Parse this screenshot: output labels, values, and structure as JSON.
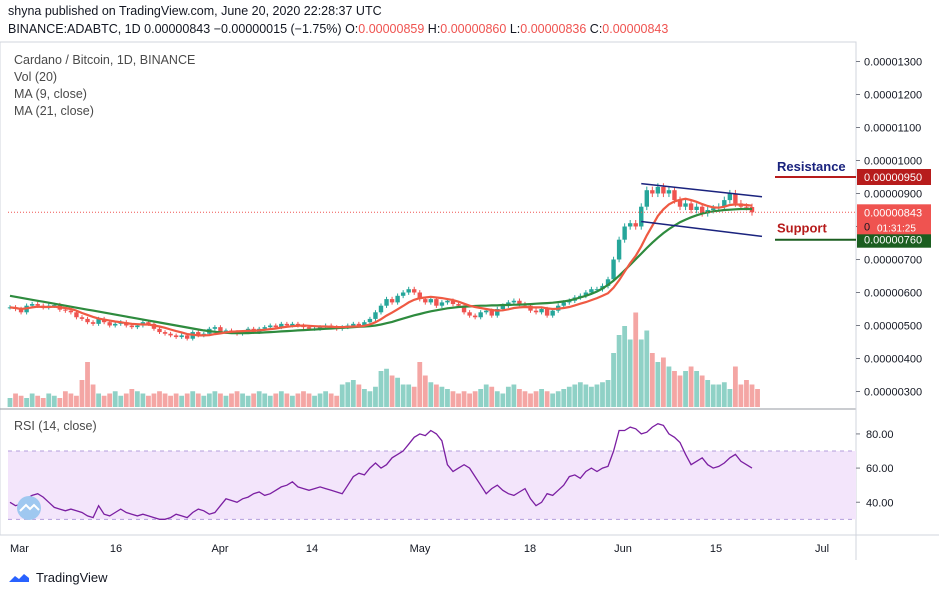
{
  "header": {
    "published": "shyna published on TradingView.com, June 20, 2020 22:28:37 UTC",
    "symbol": "BINANCE:ADABTC, 1D",
    "last": "0.00000843",
    "change": "−0.00000015 (−1.75%)",
    "o_label": "O:",
    "o": "0.00000859",
    "h_label": "H:",
    "h": "0.00000860",
    "l_label": "L:",
    "l": "0.00000836",
    "c_label": "C:",
    "c": "0.00000843"
  },
  "indicators": {
    "title": "Cardano / Bitcoin, 1D, BINANCE",
    "vol": "Vol (20)",
    "ma9": "MA (9, close)",
    "ma21": "MA (21, close)",
    "rsi": "RSI (14, close)"
  },
  "annotations": {
    "resistance": "Resistance",
    "support": "Support",
    "resistance_tag": "0.00000950",
    "support_tag": "0.00000760",
    "price_tag": "0.00000843",
    "countdown": "01:31:25",
    "partial_label": "0"
  },
  "footer": {
    "brand": "TradingView"
  },
  "colors": {
    "up": "#26a69a",
    "down": "#ef5350",
    "vol_up": "#8fd1c6",
    "vol_down": "#f4a6a4",
    "ma9": "#ef5a43",
    "ma21": "#2e8b3e",
    "rsi": "#7b1fa2",
    "rsi_band": "#f3e5fb",
    "channel": "#1a237e",
    "resistance": "#b71c1c",
    "support": "#1b5e20"
  },
  "chart_data": {
    "type": "candlestick",
    "title": "Cardano / Bitcoin, 1D, BINANCE",
    "price_axis": {
      "ticks": [
        "0.00000300",
        "0.00000400",
        "0.00000500",
        "0.00000600",
        "0.00000700",
        "0.00000800",
        "0.00000900",
        "0.00001000",
        "0.00001100",
        "0.00001200",
        "0.00001300"
      ],
      "range": [
        2.5e-06,
        1.35e-05
      ]
    },
    "time_axis": [
      "Mar",
      "16",
      "Apr",
      "14",
      "May",
      "18",
      "Jun",
      "15",
      "Jul"
    ],
    "rsi_axis": {
      "ticks": [
        "40.00",
        "60.00",
        "80.00"
      ],
      "band": [
        30,
        70
      ]
    },
    "resistance": 9.5e-06,
    "support": 7.6e-06,
    "close": [
      5.55e-06,
      5.5e-06,
      5.4e-06,
      5.6e-06,
      5.65e-06,
      5.6e-06,
      5.55e-06,
      5.6e-06,
      5.62e-06,
      5.48e-06,
      5.45e-06,
      5.4e-06,
      5.25e-06,
      5.2e-06,
      5.1e-06,
      5.05e-06,
      5.2e-06,
      5.1e-06,
      5e-06,
      5.05e-06,
      5.1e-06,
      5e-06,
      4.95e-06,
      5e-06,
      5.1e-06,
      5.05e-06,
      4.9e-06,
      4.8e-06,
      4.75e-06,
      4.7e-06,
      4.65e-06,
      4.7e-06,
      4.6e-06,
      4.8e-06,
      4.7e-06,
      4.75e-06,
      4.9e-06,
      4.95e-06,
      4.8e-06,
      4.85e-06,
      4.8e-06,
      4.75e-06,
      4.8e-06,
      4.9e-06,
      4.8e-06,
      4.9e-06,
      4.95e-06,
      5e-06,
      4.95e-06,
      5.05e-06,
      5e-06,
      5.05e-06,
      5e-06,
      4.95e-06,
      4.9e-06,
      4.9e-06,
      4.95e-06,
      5e-06,
      4.95e-06,
      4.9e-06,
      4.95e-06,
      5e-06,
      5.05e-06,
      5e-06,
      5.1e-06,
      5.2e-06,
      5.4e-06,
      5.6e-06,
      5.8e-06,
      5.7e-06,
      5.9e-06,
      6e-06,
      6.1e-06,
      6e-06,
      5.8e-06,
      5.7e-06,
      5.8e-06,
      5.6e-06,
      5.7e-06,
      5.75e-06,
      5.65e-06,
      5.6e-06,
      5.4e-06,
      5.3e-06,
      5.25e-06,
      5.4e-06,
      5.45e-06,
      5.3e-06,
      5.5e-06,
      5.6e-06,
      5.7e-06,
      5.75e-06,
      5.65e-06,
      5.6e-06,
      5.45e-06,
      5.4e-06,
      5.5e-06,
      5.3e-06,
      5.45e-06,
      5.6e-06,
      5.7e-06,
      5.75e-06,
      5.85e-06,
      5.9e-06,
      6e-06,
      6.1e-06,
      6.1e-06,
      6.2e-06,
      6.4e-06,
      7e-06,
      7.6e-06,
      8e-06,
      8.1e-06,
      8e-06,
      8.6e-06,
      9.1e-06,
      9e-06,
      9.2e-06,
      9e-06,
      9.1e-06,
      8.8e-06,
      8.6e-06,
      8.7e-06,
      8.5e-06,
      8.6e-06,
      8.4e-06,
      8.5e-06,
      8.55e-06,
      8.6e-06,
      8.8e-06,
      9e-06,
      8.7e-06,
      8.6e-06,
      8.59e-06,
      8.43e-06
    ],
    "ma9_close": [
      5.55e-06,
      5.53e-06,
      5.5e-06,
      5.52e-06,
      5.55e-06,
      5.57e-06,
      5.56e-06,
      5.56e-06,
      5.57e-06,
      5.55e-06,
      5.53e-06,
      5.5e-06,
      5.45e-06,
      5.38e-06,
      5.32e-06,
      5.26e-06,
      5.21e-06,
      5.18e-06,
      5.15e-06,
      5.12e-06,
      5.1e-06,
      5.07e-06,
      5.05e-06,
      5.04e-06,
      5.03e-06,
      5.03e-06,
      5e-06,
      4.97e-06,
      4.93e-06,
      4.88e-06,
      4.83e-06,
      4.79e-06,
      4.74e-06,
      4.72e-06,
      4.7e-06,
      4.7e-06,
      4.71e-06,
      4.74e-06,
      4.76e-06,
      4.79e-06,
      4.81e-06,
      4.82e-06,
      4.83e-06,
      4.84e-06,
      4.84e-06,
      4.85e-06,
      4.87e-06,
      4.89e-06,
      4.91e-06,
      4.94e-06,
      4.96e-06,
      4.98e-06,
      4.99e-06,
      5e-06,
      4.99e-06,
      4.98e-06,
      4.97e-06,
      4.97e-06,
      4.96e-06,
      4.95e-06,
      4.95e-06,
      4.96e-06,
      4.97e-06,
      4.97e-06,
      4.99e-06,
      5.03e-06,
      5.1e-06,
      5.19e-06,
      5.3e-06,
      5.39e-06,
      5.49e-06,
      5.59e-06,
      5.7e-06,
      5.78e-06,
      5.83e-06,
      5.85e-06,
      5.87e-06,
      5.85e-06,
      5.83e-06,
      5.8e-06,
      5.77e-06,
      5.72e-06,
      5.66e-06,
      5.6e-06,
      5.56e-06,
      5.53e-06,
      5.5e-06,
      5.47e-06,
      5.45e-06,
      5.46e-06,
      5.49e-06,
      5.53e-06,
      5.55e-06,
      5.56e-06,
      5.55e-06,
      5.55e-06,
      5.55e-06,
      5.52e-06,
      5.5e-06,
      5.51e-06,
      5.53e-06,
      5.56e-06,
      5.61e-06,
      5.66e-06,
      5.71e-06,
      5.77e-06,
      5.83e-06,
      5.9e-06,
      5.98e-06,
      6.15e-06,
      6.37e-06,
      6.63e-06,
      6.89e-06,
      7.11e-06,
      7.4e-06,
      7.73e-06,
      8.02e-06,
      8.32e-06,
      8.52e-06,
      8.67e-06,
      8.76e-06,
      8.81e-06,
      8.84e-06,
      8.8e-06,
      8.75e-06,
      8.68e-06,
      8.62e-06,
      8.58e-06,
      8.57e-06,
      8.6e-06,
      8.65e-06,
      8.67e-06,
      8.66e-06,
      8.65e-06,
      8.63e-06
    ],
    "ma21_close": [
      5.9e-06,
      5.87e-06,
      5.84e-06,
      5.81e-06,
      5.78e-06,
      5.75e-06,
      5.72e-06,
      5.69e-06,
      5.66e-06,
      5.63e-06,
      5.6e-06,
      5.57e-06,
      5.54e-06,
      5.51e-06,
      5.48e-06,
      5.45e-06,
      5.42e-06,
      5.39e-06,
      5.36e-06,
      5.33e-06,
      5.3e-06,
      5.27e-06,
      5.24e-06,
      5.21e-06,
      5.18e-06,
      5.15e-06,
      5.12e-06,
      5.09e-06,
      5.06e-06,
      5.03e-06,
      5e-06,
      4.97e-06,
      4.94e-06,
      4.91e-06,
      4.88e-06,
      4.85e-06,
      4.83e-06,
      4.81e-06,
      4.79e-06,
      4.78e-06,
      4.77e-06,
      4.77e-06,
      4.77e-06,
      4.77e-06,
      4.78e-06,
      4.78e-06,
      4.79e-06,
      4.8e-06,
      4.81e-06,
      4.82e-06,
      4.83e-06,
      4.84e-06,
      4.85e-06,
      4.86e-06,
      4.87e-06,
      4.88e-06,
      4.89e-06,
      4.9e-06,
      4.91e-06,
      4.92e-06,
      4.93e-06,
      4.94e-06,
      4.95e-06,
      4.96e-06,
      4.97e-06,
      4.98e-06,
      5e-06,
      5.03e-06,
      5.07e-06,
      5.11e-06,
      5.16e-06,
      5.21e-06,
      5.26e-06,
      5.31e-06,
      5.35e-06,
      5.39e-06,
      5.43e-06,
      5.46e-06,
      5.49e-06,
      5.52e-06,
      5.54e-06,
      5.56e-06,
      5.57e-06,
      5.58e-06,
      5.59e-06,
      5.6e-06,
      5.6e-06,
      5.61e-06,
      5.61e-06,
      5.62e-06,
      5.62e-06,
      5.63e-06,
      5.63e-06,
      5.64e-06,
      5.65e-06,
      5.66e-06,
      5.67e-06,
      5.68e-06,
      5.69e-06,
      5.71e-06,
      5.73e-06,
      5.76e-06,
      5.8e-06,
      5.85e-06,
      5.9e-06,
      5.96e-06,
      6.03e-06,
      6.12e-06,
      6.23e-06,
      6.36e-06,
      6.51e-06,
      6.67e-06,
      6.84e-06,
      7.01e-06,
      7.18e-06,
      7.35e-06,
      7.51e-06,
      7.66e-06,
      7.8e-06,
      7.92e-06,
      8.03e-06,
      8.13e-06,
      8.21e-06,
      8.28e-06,
      8.34e-06,
      8.39e-06,
      8.43e-06,
      8.46e-06,
      8.48e-06,
      8.5e-06,
      8.51e-06,
      8.52e-06,
      8.53e-06,
      8.53e-06,
      8.53e-06
    ],
    "volume_relative": [
      0.2,
      0.3,
      0.25,
      0.2,
      0.3,
      0.25,
      0.2,
      0.3,
      0.25,
      0.2,
      0.35,
      0.3,
      0.25,
      0.6,
      1.0,
      0.5,
      0.3,
      0.25,
      0.3,
      0.35,
      0.25,
      0.3,
      0.4,
      0.35,
      0.3,
      0.25,
      0.3,
      0.35,
      0.3,
      0.25,
      0.3,
      0.25,
      0.3,
      0.35,
      0.3,
      0.25,
      0.3,
      0.35,
      0.3,
      0.25,
      0.3,
      0.35,
      0.3,
      0.25,
      0.3,
      0.35,
      0.3,
      0.25,
      0.3,
      0.35,
      0.3,
      0.25,
      0.3,
      0.35,
      0.3,
      0.25,
      0.3,
      0.35,
      0.3,
      0.25,
      0.5,
      0.55,
      0.6,
      0.5,
      0.4,
      0.35,
      0.45,
      0.8,
      0.85,
      0.7,
      0.65,
      0.5,
      0.5,
      0.45,
      1.0,
      0.7,
      0.55,
      0.5,
      0.45,
      0.4,
      0.35,
      0.3,
      0.35,
      0.3,
      0.35,
      0.4,
      0.5,
      0.45,
      0.35,
      0.3,
      0.45,
      0.5,
      0.4,
      0.35,
      0.3,
      0.35,
      0.4,
      0.35,
      0.3,
      0.35,
      0.4,
      0.45,
      0.5,
      0.55,
      0.5,
      0.45,
      0.5,
      0.55,
      0.6,
      1.2,
      1.6,
      1.8,
      1.5,
      2.1,
      1.5,
      1.7,
      1.2,
      1.0,
      1.1,
      0.9,
      0.8,
      0.7,
      0.8,
      0.9,
      0.8,
      0.7,
      0.6,
      0.5,
      0.5,
      0.55,
      0.4,
      0.9,
      0.5,
      0.6,
      0.5,
      0.4
    ],
    "rsi_values": [
      40,
      38,
      39,
      42,
      44,
      45,
      43,
      40,
      37,
      36,
      35,
      36,
      35,
      34,
      32,
      31,
      38,
      33,
      32,
      34,
      36,
      34,
      33,
      32,
      33,
      32,
      31,
      30,
      30,
      31,
      33,
      32,
      31,
      34,
      36,
      35,
      33,
      34,
      38,
      42,
      41,
      40,
      42,
      43,
      45,
      46,
      44,
      45,
      47,
      49,
      50,
      52,
      49,
      48,
      47,
      48,
      49,
      48,
      47,
      46,
      45,
      50,
      55,
      57,
      56,
      60,
      63,
      60,
      62,
      66,
      68,
      70,
      74,
      78,
      80,
      79,
      82,
      80,
      76,
      62,
      58,
      60,
      62,
      60,
      55,
      50,
      45,
      48,
      50,
      47,
      45,
      44,
      46,
      48,
      42,
      38,
      40,
      45,
      44,
      47,
      50,
      55,
      56,
      54,
      58,
      60,
      58,
      60,
      61,
      70,
      82,
      82,
      84,
      83,
      80,
      81,
      84,
      86,
      85,
      80,
      78,
      75,
      68,
      62,
      64,
      66,
      62,
      60,
      61,
      63,
      66,
      68,
      64,
      62,
      60
    ]
  }
}
